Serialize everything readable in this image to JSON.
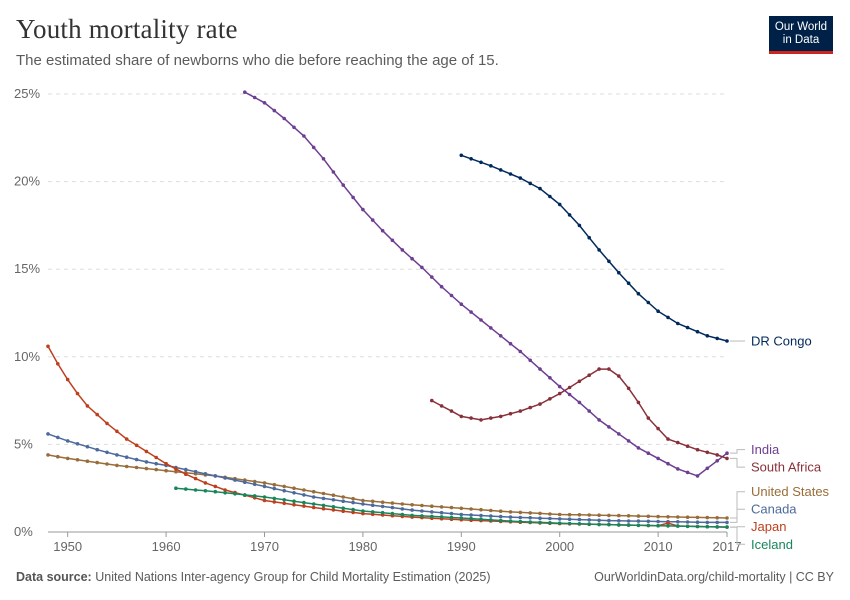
{
  "header": {
    "title": "Youth mortality rate",
    "subtitle": "The estimated share of newborns who die before reaching the age of 15.",
    "logo_line1": "Our World",
    "logo_line2": "in Data"
  },
  "footer": {
    "source_label": "Data source:",
    "source_text": "United Nations Inter-agency Group for Child Mortality Estimation (2025)",
    "attribution": "OurWorldinData.org/child-mortality | CC BY"
  },
  "colors": {
    "logo_bg": "#002147",
    "logo_accent": "#ce261e"
  },
  "chart_data": {
    "type": "line",
    "title": "Youth mortality rate",
    "subtitle": "The estimated share of newborns who die before reaching the age of 15.",
    "xlim": [
      1948,
      2017
    ],
    "ylim": [
      0,
      25
    ],
    "x_ticks": [
      1950,
      1960,
      1970,
      1980,
      1990,
      2000,
      2010,
      2017
    ],
    "y_ticks": [
      0,
      5,
      10,
      15,
      20,
      25
    ],
    "y_tick_labels": [
      "0%",
      "5%",
      "10%",
      "15%",
      "20%",
      "25%"
    ],
    "grid": "horizontal dashed",
    "legend": "inline labels at right end of lines",
    "series": [
      {
        "name": "DR Congo",
        "color": "#00295b",
        "label_pos": 10.9,
        "points": [
          [
            1990,
            21.5
          ],
          [
            1993,
            20.9
          ],
          [
            1996,
            20.2
          ],
          [
            1998,
            19.6
          ],
          [
            2000,
            18.7
          ],
          [
            2002,
            17.5
          ],
          [
            2004,
            16.1
          ],
          [
            2006,
            14.8
          ],
          [
            2008,
            13.6
          ],
          [
            2010,
            12.6
          ],
          [
            2012,
            11.9
          ],
          [
            2015,
            11.2
          ],
          [
            2017,
            10.9
          ]
        ]
      },
      {
        "name": "India",
        "color": "#6d3e91",
        "label_pos": 4.7,
        "points": [
          [
            1968,
            25.1
          ],
          [
            1970,
            24.5
          ],
          [
            1972,
            23.6
          ],
          [
            1974,
            22.6
          ],
          [
            1976,
            21.3
          ],
          [
            1978,
            19.8
          ],
          [
            1980,
            18.4
          ],
          [
            1982,
            17.2
          ],
          [
            1984,
            16.1
          ],
          [
            1986,
            15.1
          ],
          [
            1988,
            14.0
          ],
          [
            1990,
            13.0
          ],
          [
            1992,
            12.1
          ],
          [
            1994,
            11.2
          ],
          [
            1996,
            10.3
          ],
          [
            1998,
            9.3
          ],
          [
            2000,
            8.3
          ],
          [
            2002,
            7.4
          ],
          [
            2004,
            6.4
          ],
          [
            2006,
            5.6
          ],
          [
            2008,
            4.8
          ],
          [
            2010,
            4.2
          ],
          [
            2012,
            3.6
          ],
          [
            2014,
            3.2
          ],
          [
            2017,
            4.5
          ]
        ]
      },
      {
        "name": "South Africa",
        "color": "#883039",
        "label_pos": 3.7,
        "points": [
          [
            1987,
            7.5
          ],
          [
            1989,
            6.9
          ],
          [
            1990,
            6.6
          ],
          [
            1992,
            6.4
          ],
          [
            1994,
            6.6
          ],
          [
            1996,
            6.9
          ],
          [
            1998,
            7.3
          ],
          [
            2000,
            7.9
          ],
          [
            2002,
            8.6
          ],
          [
            2004,
            9.3
          ],
          [
            2005,
            9.3
          ],
          [
            2006,
            8.9
          ],
          [
            2007,
            8.2
          ],
          [
            2008,
            7.4
          ],
          [
            2009,
            6.5
          ],
          [
            2010,
            5.9
          ],
          [
            2011,
            5.3
          ],
          [
            2012,
            5.1
          ],
          [
            2014,
            4.7
          ],
          [
            2016,
            4.4
          ],
          [
            2017,
            4.2
          ]
        ]
      },
      {
        "name": "United States",
        "color": "#996d39",
        "label_pos": 2.3,
        "points": [
          [
            1948,
            4.4
          ],
          [
            1950,
            4.2
          ],
          [
            1955,
            3.8
          ],
          [
            1960,
            3.5
          ],
          [
            1965,
            3.2
          ],
          [
            1970,
            2.8
          ],
          [
            1975,
            2.3
          ],
          [
            1980,
            1.8
          ],
          [
            1985,
            1.55
          ],
          [
            1990,
            1.35
          ],
          [
            1995,
            1.15
          ],
          [
            2000,
            1.0
          ],
          [
            2005,
            0.95
          ],
          [
            2010,
            0.88
          ],
          [
            2015,
            0.82
          ],
          [
            2017,
            0.8
          ]
        ]
      },
      {
        "name": "Canada",
        "color": "#4c6a9c",
        "label_pos": 1.3,
        "points": [
          [
            1948,
            5.6
          ],
          [
            1950,
            5.2
          ],
          [
            1953,
            4.7
          ],
          [
            1955,
            4.4
          ],
          [
            1958,
            4.0
          ],
          [
            1960,
            3.8
          ],
          [
            1965,
            3.2
          ],
          [
            1970,
            2.6
          ],
          [
            1975,
            2.0
          ],
          [
            1980,
            1.6
          ],
          [
            1985,
            1.25
          ],
          [
            1990,
            1.0
          ],
          [
            1995,
            0.85
          ],
          [
            2000,
            0.75
          ],
          [
            2005,
            0.65
          ],
          [
            2010,
            0.6
          ],
          [
            2015,
            0.55
          ],
          [
            2017,
            0.55
          ]
        ]
      },
      {
        "name": "Japan",
        "color": "#be3f1d",
        "label_pos": 0.3,
        "points": [
          [
            1948,
            10.6
          ],
          [
            1949,
            9.6
          ],
          [
            1950,
            8.7
          ],
          [
            1951,
            7.9
          ],
          [
            1952,
            7.2
          ],
          [
            1954,
            6.2
          ],
          [
            1956,
            5.3
          ],
          [
            1958,
            4.6
          ],
          [
            1960,
            3.9
          ],
          [
            1962,
            3.3
          ],
          [
            1964,
            2.8
          ],
          [
            1966,
            2.4
          ],
          [
            1968,
            2.1
          ],
          [
            1970,
            1.8
          ],
          [
            1975,
            1.4
          ],
          [
            1980,
            1.05
          ],
          [
            1985,
            0.85
          ],
          [
            1990,
            0.7
          ],
          [
            1995,
            0.58
          ],
          [
            2000,
            0.48
          ],
          [
            2005,
            0.42
          ],
          [
            2010,
            0.36
          ],
          [
            2011,
            0.5
          ],
          [
            2012,
            0.34
          ],
          [
            2015,
            0.3
          ],
          [
            2017,
            0.28
          ]
        ]
      },
      {
        "name": "Iceland",
        "color": "#18865b",
        "label_pos": -0.7,
        "points": [
          [
            1961,
            2.5
          ],
          [
            1965,
            2.3
          ],
          [
            1970,
            2.0
          ],
          [
            1975,
            1.6
          ],
          [
            1980,
            1.2
          ],
          [
            1985,
            0.95
          ],
          [
            1990,
            0.8
          ],
          [
            1995,
            0.62
          ],
          [
            2000,
            0.5
          ],
          [
            2005,
            0.42
          ],
          [
            2010,
            0.36
          ],
          [
            2015,
            0.3
          ],
          [
            2017,
            0.28
          ]
        ]
      }
    ]
  }
}
